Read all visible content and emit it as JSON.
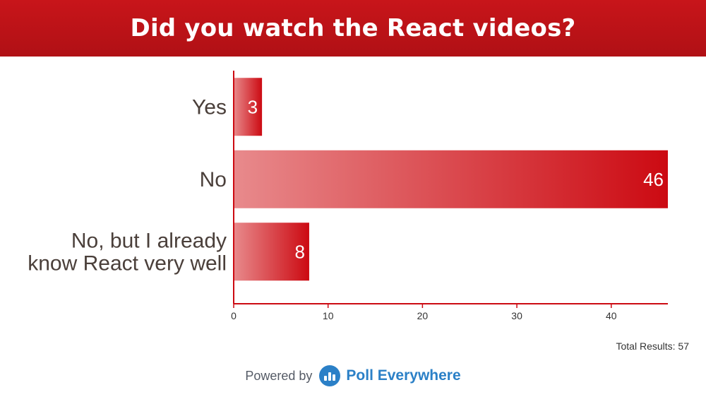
{
  "header": {
    "title": "Did you watch the React videos?"
  },
  "colors": {
    "accent": "#c8151a",
    "bar_dark": "#cc0a12",
    "bar_light": "#e88a8c",
    "brand": "#2b80c7"
  },
  "chart_data": {
    "type": "bar",
    "orientation": "horizontal",
    "categories": [
      [
        "Yes"
      ],
      [
        "No"
      ],
      [
        "No, but I already",
        "know React very well"
      ]
    ],
    "values": [
      3,
      46,
      8
    ],
    "xlim": [
      0,
      46
    ],
    "xticks": [
      0,
      10,
      20,
      30,
      40
    ],
    "title": "Did you watch the React videos?",
    "xlabel": "",
    "ylabel": "",
    "grid": false,
    "data_labels": true
  },
  "footer": {
    "total_results": "Total Results: 57",
    "powered_by": "Powered by",
    "brand": "Poll Everywhere",
    "brand_icon": "poll-everywhere-logo-icon"
  }
}
